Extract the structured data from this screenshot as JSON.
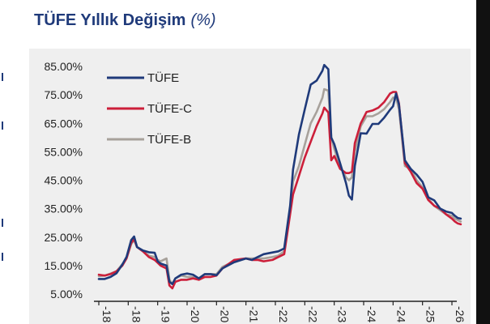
{
  "title": "TÜFE Yıllık Değişim",
  "title_unit": "(%)",
  "chart_data": {
    "type": "line",
    "title": "TÜFE Yıllık Değişim (%)",
    "xlabel": "",
    "ylabel": "",
    "ylim": [
      5,
      85
    ],
    "y_ticks": [
      "85.00%",
      "75.00%",
      "65.00%",
      "55.00%",
      "45.00%",
      "35.00%",
      "25.00%",
      "15.00%",
      "5.00%"
    ],
    "y_tick_values": [
      85,
      75,
      65,
      55,
      45,
      35,
      25,
      15,
      5
    ],
    "x_ticks": [
      "-18",
      "-18",
      "-19",
      "-20",
      "-20",
      "-21",
      "-22",
      "-22",
      "-23",
      "-24",
      "-24",
      "-25",
      "-26"
    ],
    "x_tick_positions": [
      2018.0,
      2018.5,
      2019.0,
      2019.5,
      2020.0,
      2020.5,
      2021.0,
      2021.5,
      2022.0,
      2022.5,
      2023.0,
      2023.5,
      2024.0
    ],
    "legend": "top-left",
    "grid": false,
    "series": [
      {
        "name": "TÜFE",
        "color": "#1f3a7a",
        "points": [
          [
            2018.0,
            10.3
          ],
          [
            2018.1,
            10.3
          ],
          [
            2018.2,
            11.0
          ],
          [
            2018.3,
            12.3
          ],
          [
            2018.4,
            15.4
          ],
          [
            2018.47,
            18.0
          ],
          [
            2018.55,
            24.0
          ],
          [
            2018.6,
            25.2
          ],
          [
            2018.65,
            21.5
          ],
          [
            2018.75,
            20.3
          ],
          [
            2018.85,
            19.7
          ],
          [
            2018.95,
            19.5
          ],
          [
            2019.0,
            16.5
          ],
          [
            2019.05,
            15.7
          ],
          [
            2019.15,
            15.0
          ],
          [
            2019.2,
            9.3
          ],
          [
            2019.25,
            8.5
          ],
          [
            2019.3,
            10.5
          ],
          [
            2019.4,
            11.8
          ],
          [
            2019.5,
            12.2
          ],
          [
            2019.6,
            11.8
          ],
          [
            2019.7,
            10.5
          ],
          [
            2019.8,
            12.0
          ],
          [
            2019.9,
            12.0
          ],
          [
            2020.0,
            11.6
          ],
          [
            2020.1,
            14.0
          ],
          [
            2020.3,
            16.2
          ],
          [
            2020.5,
            17.5
          ],
          [
            2020.6,
            17.0
          ],
          [
            2020.7,
            18.0
          ],
          [
            2020.8,
            19.0
          ],
          [
            2020.95,
            19.6
          ],
          [
            2021.05,
            20.0
          ],
          [
            2021.15,
            21.0
          ],
          [
            2021.25,
            36.0
          ],
          [
            2021.3,
            48.7
          ],
          [
            2021.4,
            61.1
          ],
          [
            2021.5,
            69.9
          ],
          [
            2021.6,
            78.6
          ],
          [
            2021.7,
            80.0
          ],
          [
            2021.8,
            83.5
          ],
          [
            2021.83,
            85.5
          ],
          [
            2021.9,
            84.0
          ],
          [
            2021.95,
            60.0
          ],
          [
            2022.0,
            57.7
          ],
          [
            2022.1,
            51.0
          ],
          [
            2022.2,
            44.0
          ],
          [
            2022.25,
            39.6
          ],
          [
            2022.3,
            38.2
          ],
          [
            2022.35,
            50.0
          ],
          [
            2022.45,
            61.5
          ],
          [
            2022.55,
            61.4
          ],
          [
            2022.65,
            64.8
          ],
          [
            2022.75,
            64.8
          ],
          [
            2022.85,
            67.0
          ],
          [
            2022.95,
            69.8
          ],
          [
            2023.0,
            71.0
          ],
          [
            2023.05,
            75.5
          ],
          [
            2023.1,
            71.6
          ],
          [
            2023.2,
            52.0
          ],
          [
            2023.3,
            49.0
          ],
          [
            2023.4,
            47.0
          ],
          [
            2023.5,
            44.4
          ],
          [
            2023.6,
            39.0
          ],
          [
            2023.7,
            37.9
          ],
          [
            2023.8,
            35.0
          ],
          [
            2023.9,
            34.0
          ],
          [
            2024.0,
            33.5
          ],
          [
            2024.05,
            32.5
          ],
          [
            2024.1,
            31.7
          ],
          [
            2024.15,
            31.5
          ]
        ]
      },
      {
        "name": "TÜFE-C",
        "color": "#cc1f3a",
        "points": [
          [
            2018.0,
            11.8
          ],
          [
            2018.1,
            11.5
          ],
          [
            2018.2,
            12.0
          ],
          [
            2018.3,
            13.0
          ],
          [
            2018.4,
            15.0
          ],
          [
            2018.47,
            17.5
          ],
          [
            2018.55,
            23.0
          ],
          [
            2018.6,
            24.3
          ],
          [
            2018.65,
            21.5
          ],
          [
            2018.75,
            20.0
          ],
          [
            2018.85,
            18.0
          ],
          [
            2018.95,
            17.0
          ],
          [
            2019.0,
            16.0
          ],
          [
            2019.05,
            15.0
          ],
          [
            2019.15,
            14.0
          ],
          [
            2019.2,
            8.0
          ],
          [
            2019.25,
            7.0
          ],
          [
            2019.3,
            9.3
          ],
          [
            2019.4,
            10.0
          ],
          [
            2019.5,
            10.0
          ],
          [
            2019.6,
            10.5
          ],
          [
            2019.7,
            10.0
          ],
          [
            2019.8,
            11.0
          ],
          [
            2019.9,
            11.0
          ],
          [
            2020.0,
            11.5
          ],
          [
            2020.1,
            14.0
          ],
          [
            2020.3,
            17.0
          ],
          [
            2020.5,
            17.5
          ],
          [
            2020.6,
            17.0
          ],
          [
            2020.7,
            17.0
          ],
          [
            2020.8,
            16.5
          ],
          [
            2020.95,
            17.0
          ],
          [
            2021.05,
            18.0
          ],
          [
            2021.15,
            19.0
          ],
          [
            2021.25,
            33.0
          ],
          [
            2021.3,
            40.0
          ],
          [
            2021.4,
            46.5
          ],
          [
            2021.5,
            53.0
          ],
          [
            2021.6,
            58.5
          ],
          [
            2021.7,
            64.0
          ],
          [
            2021.8,
            68.5
          ],
          [
            2021.83,
            70.5
          ],
          [
            2021.9,
            68.8
          ],
          [
            2021.95,
            52.0
          ],
          [
            2022.0,
            53.5
          ],
          [
            2022.1,
            49.0
          ],
          [
            2022.2,
            47.5
          ],
          [
            2022.25,
            47.5
          ],
          [
            2022.3,
            48.0
          ],
          [
            2022.35,
            58.0
          ],
          [
            2022.45,
            65.0
          ],
          [
            2022.55,
            69.0
          ],
          [
            2022.65,
            69.5
          ],
          [
            2022.75,
            70.5
          ],
          [
            2022.85,
            72.5
          ],
          [
            2022.95,
            75.5
          ],
          [
            2023.0,
            76.0
          ],
          [
            2023.05,
            76.0
          ],
          [
            2023.1,
            72.0
          ],
          [
            2023.2,
            51.0
          ],
          [
            2023.3,
            48.0
          ],
          [
            2023.4,
            44.0
          ],
          [
            2023.5,
            42.0
          ],
          [
            2023.6,
            38.0
          ],
          [
            2023.7,
            36.0
          ],
          [
            2023.8,
            35.0
          ],
          [
            2023.9,
            33.0
          ],
          [
            2024.0,
            31.5
          ],
          [
            2024.05,
            30.5
          ],
          [
            2024.1,
            29.8
          ],
          [
            2024.15,
            29.5
          ]
        ]
      },
      {
        "name": "TÜFE-B",
        "color": "#a7a19b",
        "points": [
          [
            2018.0,
            11.3
          ],
          [
            2018.1,
            11.5
          ],
          [
            2018.2,
            12.2
          ],
          [
            2018.3,
            13.0
          ],
          [
            2018.4,
            15.5
          ],
          [
            2018.47,
            17.5
          ],
          [
            2018.55,
            22.5
          ],
          [
            2018.6,
            24.0
          ],
          [
            2018.65,
            21.5
          ],
          [
            2018.75,
            20.0
          ],
          [
            2018.85,
            18.5
          ],
          [
            2018.95,
            18.0
          ],
          [
            2019.0,
            17.0
          ],
          [
            2019.05,
            16.5
          ],
          [
            2019.15,
            17.5
          ],
          [
            2019.2,
            10.0
          ],
          [
            2019.25,
            8.5
          ],
          [
            2019.3,
            10.5
          ],
          [
            2019.4,
            11.5
          ],
          [
            2019.5,
            11.0
          ],
          [
            2019.6,
            11.0
          ],
          [
            2019.7,
            10.5
          ],
          [
            2019.8,
            12.0
          ],
          [
            2019.9,
            12.0
          ],
          [
            2020.0,
            12.0
          ],
          [
            2020.1,
            14.5
          ],
          [
            2020.3,
            16.5
          ],
          [
            2020.5,
            17.5
          ],
          [
            2020.6,
            17.5
          ],
          [
            2020.7,
            17.5
          ],
          [
            2020.8,
            17.5
          ],
          [
            2020.95,
            18.0
          ],
          [
            2021.05,
            18.5
          ],
          [
            2021.15,
            20.0
          ],
          [
            2021.25,
            34.0
          ],
          [
            2021.3,
            44.5
          ],
          [
            2021.4,
            50.0
          ],
          [
            2021.5,
            57.5
          ],
          [
            2021.6,
            65.0
          ],
          [
            2021.7,
            69.0
          ],
          [
            2021.8,
            74.0
          ],
          [
            2021.83,
            77.0
          ],
          [
            2021.9,
            76.5
          ],
          [
            2021.95,
            60.0
          ],
          [
            2022.0,
            56.0
          ],
          [
            2022.1,
            50.0
          ],
          [
            2022.2,
            46.0
          ],
          [
            2022.25,
            45.0
          ],
          [
            2022.3,
            46.0
          ],
          [
            2022.35,
            55.0
          ],
          [
            2022.45,
            64.0
          ],
          [
            2022.55,
            67.5
          ],
          [
            2022.65,
            67.5
          ],
          [
            2022.75,
            68.5
          ],
          [
            2022.85,
            70.0
          ],
          [
            2022.95,
            72.5
          ],
          [
            2023.0,
            74.0
          ],
          [
            2023.05,
            74.0
          ],
          [
            2023.1,
            70.0
          ],
          [
            2023.2,
            50.0
          ],
          [
            2023.3,
            49.0
          ],
          [
            2023.4,
            45.0
          ],
          [
            2023.5,
            42.5
          ],
          [
            2023.6,
            38.5
          ],
          [
            2023.7,
            36.0
          ],
          [
            2023.8,
            34.5
          ],
          [
            2023.9,
            33.0
          ],
          [
            2024.0,
            32.5
          ],
          [
            2024.05,
            31.5
          ],
          [
            2024.1,
            31.0
          ],
          [
            2024.15,
            30.5
          ]
        ]
      }
    ]
  }
}
